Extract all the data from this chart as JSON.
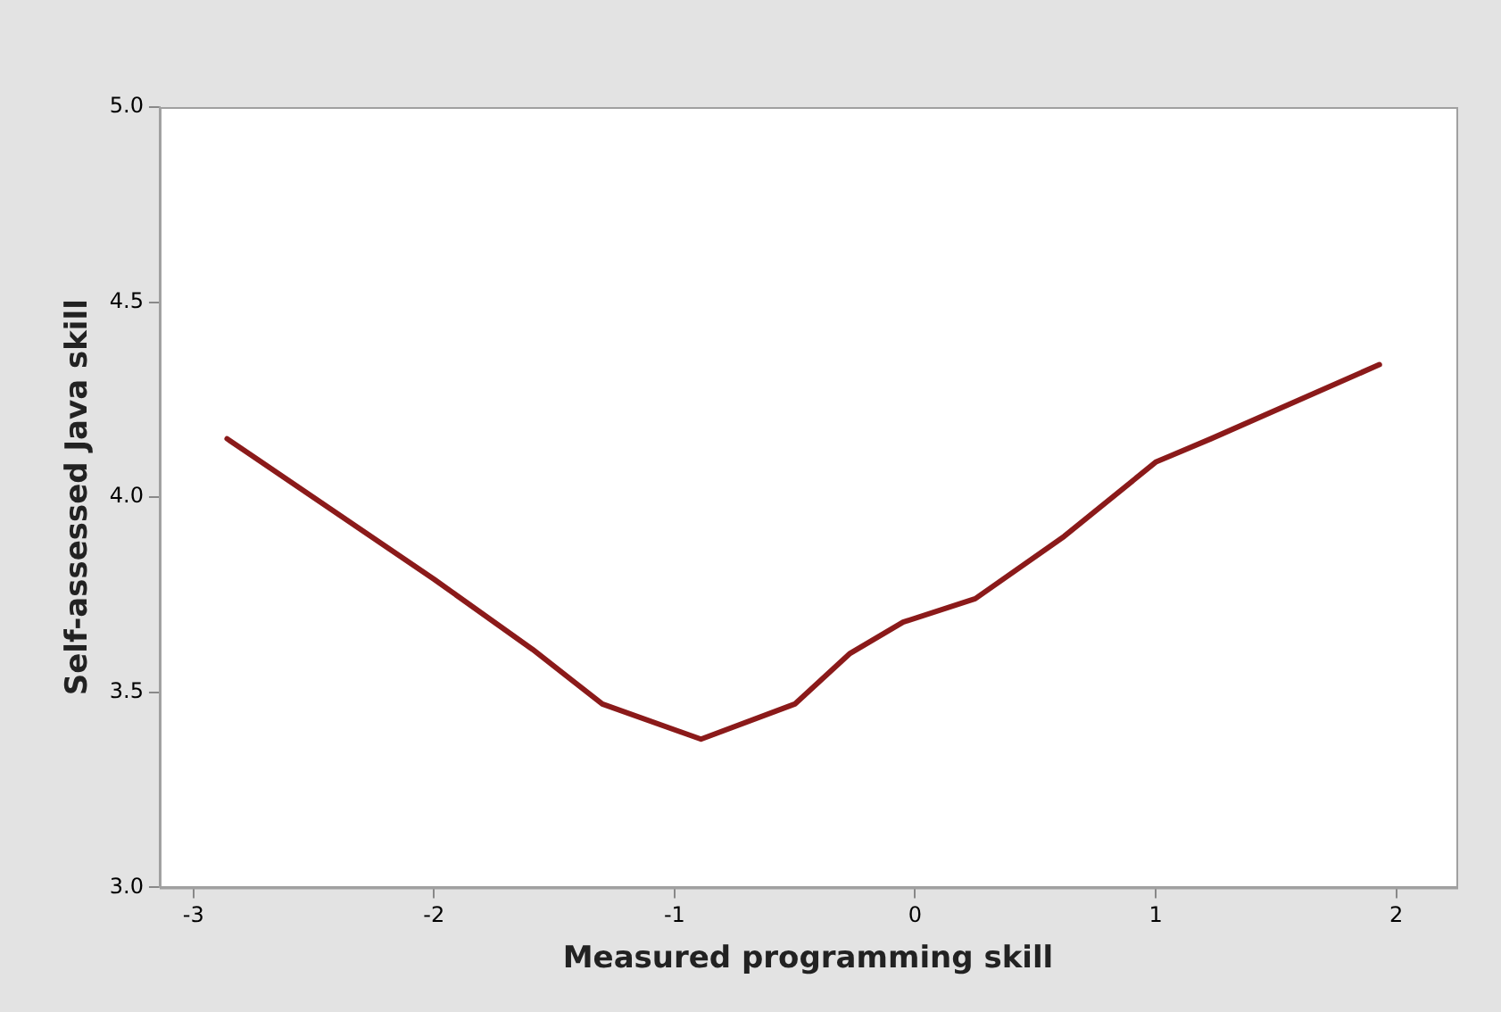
{
  "chart_data": {
    "type": "line",
    "xlabel": "Measured programming skill",
    "ylabel": "Self-assessed Java skill",
    "x": [
      -2.86,
      -2.0,
      -1.59,
      -1.3,
      -0.89,
      -0.5,
      -0.27,
      -0.05,
      0.25,
      0.62,
      1.0,
      1.23,
      1.93
    ],
    "series": [
      {
        "color": "#8b1a1a",
        "values": [
          4.15,
          3.79,
          3.61,
          3.47,
          3.38,
          3.47,
          3.6,
          3.68,
          3.74,
          3.9,
          4.09,
          4.15,
          4.34
        ]
      }
    ],
    "xlim": [
      -3.14,
      2.25
    ],
    "xticks": [
      -3,
      -2,
      -1,
      0,
      1,
      2
    ],
    "ylim": [
      3.0,
      5.0
    ],
    "yticks": [
      {
        "value": 3.0,
        "label": "3.0"
      },
      {
        "value": 3.5,
        "label": "3.5"
      },
      {
        "value": 4.0,
        "label": "4.0"
      },
      {
        "value": 4.5,
        "label": "4.5"
      },
      {
        "value": 5.0,
        "label": "5.0"
      }
    ],
    "grid": false,
    "legend": false,
    "marker": "none",
    "line_style": "solid"
  }
}
